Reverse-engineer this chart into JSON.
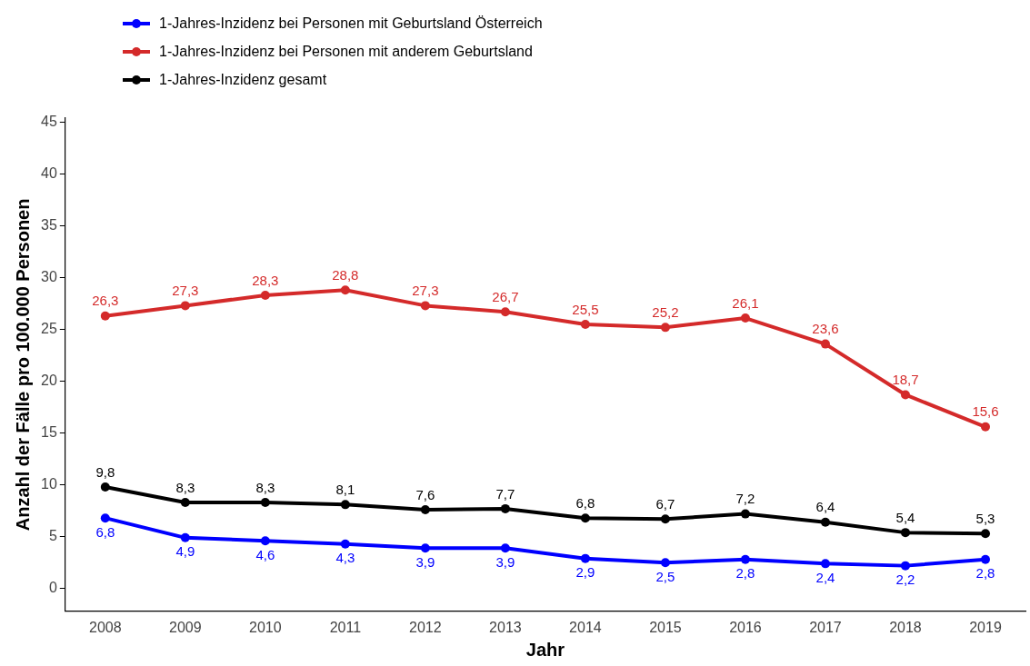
{
  "chart_data": {
    "type": "line",
    "xlabel": "Jahr",
    "ylabel": "Anzahl der Fälle pro 100.000 Personen",
    "categories": [
      "2008",
      "2009",
      "2010",
      "2011",
      "2012",
      "2013",
      "2014",
      "2015",
      "2016",
      "2017",
      "2018",
      "2019"
    ],
    "series": [
      {
        "name": "1-Jahres-Inzidenz bei Personen mit Geburtsland Österreich",
        "color": "#0000ff",
        "values": [
          6.8,
          4.9,
          4.6,
          4.3,
          3.9,
          3.9,
          2.9,
          2.5,
          2.8,
          2.4,
          2.2,
          2.8
        ],
        "value_labels": [
          "6,8",
          "4,9",
          "4,6",
          "4,3",
          "3,9",
          "3,9",
          "2,9",
          "2,5",
          "2,8",
          "2,4",
          "2,2",
          "2,8"
        ]
      },
      {
        "name": "1-Jahres-Inzidenz bei Personen mit anderem Geburtsland",
        "color": "#d42a2a",
        "values": [
          26.3,
          27.3,
          28.3,
          28.8,
          27.3,
          26.7,
          25.5,
          25.2,
          26.1,
          23.6,
          18.7,
          15.6
        ],
        "value_labels": [
          "26,3",
          "27,3",
          "28,3",
          "28,8",
          "27,3",
          "26,7",
          "25,5",
          "25,2",
          "26,1",
          "23,6",
          "18,7",
          "15,6"
        ]
      },
      {
        "name": "1-Jahres-Inzidenz gesamt",
        "color": "#000000",
        "values": [
          9.8,
          8.3,
          8.3,
          8.1,
          7.6,
          7.7,
          6.8,
          6.7,
          7.2,
          6.4,
          5.4,
          5.3
        ],
        "value_labels": [
          "9,8",
          "8,3",
          "8,3",
          "8,1",
          "7,6",
          "7,7",
          "6,8",
          "6,7",
          "7,2",
          "6,4",
          "5,4",
          "5,3"
        ]
      }
    ],
    "ylim": [
      -2.2,
      45.4
    ],
    "yticks": [
      0,
      5,
      10,
      15,
      20,
      25,
      30,
      35,
      40,
      45
    ],
    "grid": false,
    "legend": "top left",
    "marker": "circle",
    "line_style": "solid"
  }
}
